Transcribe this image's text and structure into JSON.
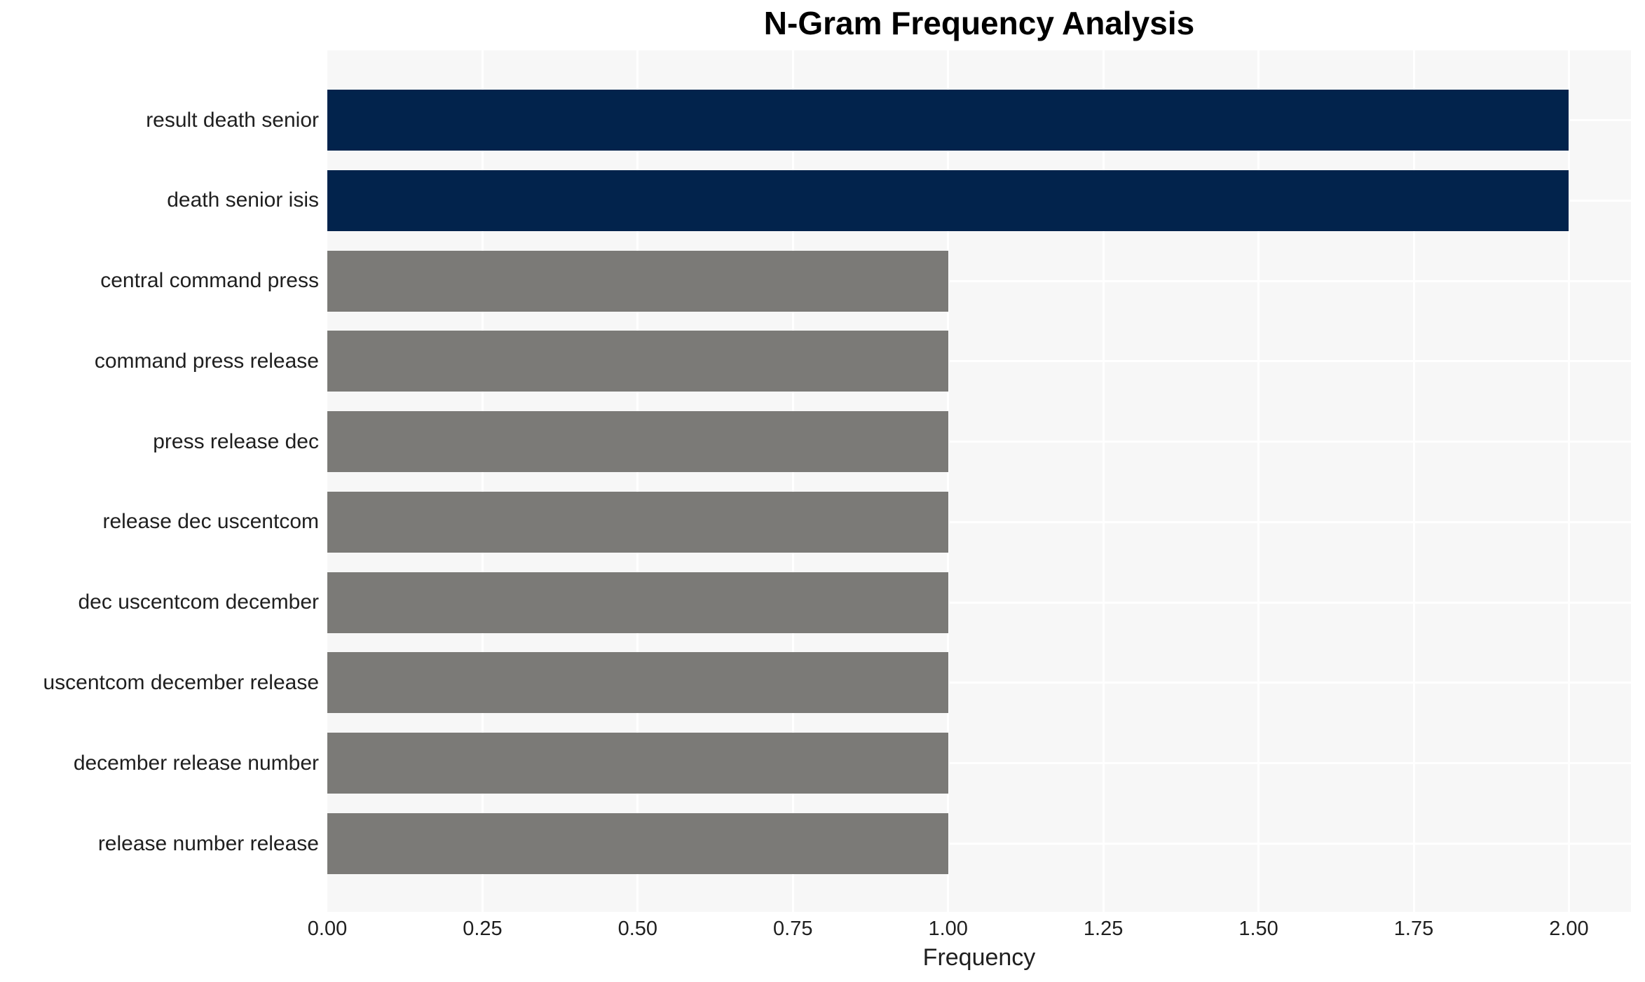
{
  "chart_data": {
    "type": "bar",
    "orientation": "horizontal",
    "title": "N-Gram Frequency Analysis",
    "xlabel": "Frequency",
    "ylabel": "",
    "categories": [
      "result death senior",
      "death senior isis",
      "central command press",
      "command press release",
      "press release dec",
      "release dec uscentcom",
      "dec uscentcom december",
      "uscentcom december release",
      "december release number",
      "release number release"
    ],
    "values": [
      2,
      2,
      1,
      1,
      1,
      1,
      1,
      1,
      1,
      1
    ],
    "bar_colors": [
      "#02234c",
      "#02234c",
      "#7b7a77",
      "#7b7a77",
      "#7b7a77",
      "#7b7a77",
      "#7b7a77",
      "#7b7a77",
      "#7b7a77",
      "#7b7a77"
    ],
    "xlim": [
      0,
      2.1
    ],
    "xticks": [
      0.0,
      0.25,
      0.5,
      0.75,
      1.0,
      1.25,
      1.5,
      1.75,
      2.0
    ],
    "xtick_labels": [
      "0.00",
      "0.25",
      "0.50",
      "0.75",
      "1.00",
      "1.25",
      "1.50",
      "1.75",
      "2.00"
    ],
    "grid": true,
    "grid_color": "#ffffff",
    "plot_background": "#f7f7f7",
    "legend": false,
    "accent_color_high": "#02234c",
    "accent_color_low": "#7b7a77"
  }
}
